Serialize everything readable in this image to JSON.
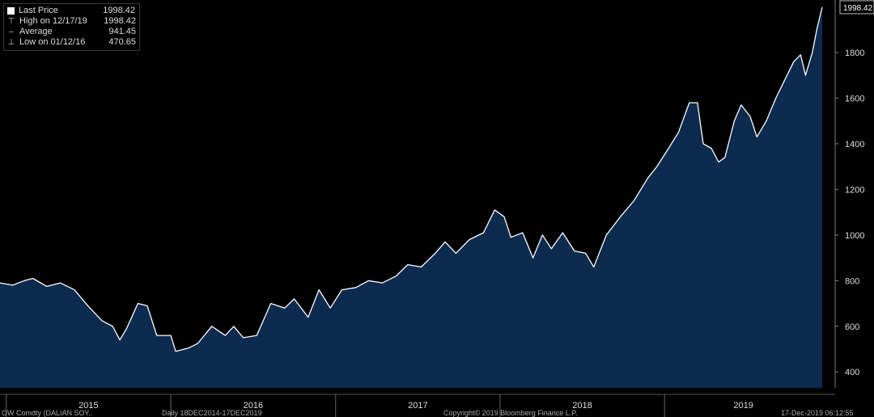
{
  "legend": {
    "items": [
      {
        "label": "Last Price",
        "value": "1998.42",
        "icon": "square-icon"
      },
      {
        "label": "High on 12/17/19",
        "value": "1998.42",
        "icon": "high-marker-icon"
      },
      {
        "label": "Average",
        "value": "941.45",
        "icon": "average-marker-icon"
      },
      {
        "label": "Low on 01/12/16",
        "value": "470.65",
        "icon": "low-marker-icon"
      }
    ]
  },
  "footer": {
    "left": "OW Comdty (DALIAN SOY..",
    "middle": "Daily 18DEC2014-17DEC2019",
    "copyright": "Copyright© 2019 Bloomberg Finance L.P.",
    "right": "17-Dec-2019 06:12:55"
  },
  "colors": {
    "fill": "#0d2a4f",
    "line": "#ffffff",
    "background": "#000000",
    "axis_text": "#dddddd"
  },
  "chart_data": {
    "type": "area",
    "x_labels": [
      "2015",
      "2016",
      "2017",
      "2018",
      "2019"
    ],
    "y_ticks": [
      400,
      600,
      800,
      1000,
      1200,
      1400,
      1600,
      1800
    ],
    "ylim": [
      330,
      2030
    ],
    "xlim": [
      "2014-12-18",
      "2019-12-17"
    ],
    "last_value_label": "1998.42",
    "grid": false,
    "series": [
      {
        "points": [
          [
            "2014-12-18",
            790
          ],
          [
            "2015-01-15",
            780
          ],
          [
            "2015-02-10",
            800
          ],
          [
            "2015-03-01",
            810
          ],
          [
            "2015-04-01",
            775
          ],
          [
            "2015-05-01",
            790
          ],
          [
            "2015-06-01",
            760
          ],
          [
            "2015-07-01",
            690
          ],
          [
            "2015-08-01",
            625
          ],
          [
            "2015-08-25",
            600
          ],
          [
            "2015-09-10",
            540
          ],
          [
            "2015-09-25",
            590
          ],
          [
            "2015-10-20",
            700
          ],
          [
            "2015-11-10",
            690
          ],
          [
            "2015-12-01",
            560
          ],
          [
            "2016-01-01",
            560
          ],
          [
            "2016-01-12",
            490
          ],
          [
            "2016-02-10",
            505
          ],
          [
            "2016-03-01",
            525
          ],
          [
            "2016-04-01",
            600
          ],
          [
            "2016-05-01",
            560
          ],
          [
            "2016-05-20",
            600
          ],
          [
            "2016-06-10",
            550
          ],
          [
            "2016-07-10",
            560
          ],
          [
            "2016-08-10",
            700
          ],
          [
            "2016-09-10",
            680
          ],
          [
            "2016-10-01",
            720
          ],
          [
            "2016-11-01",
            640
          ],
          [
            "2016-11-25",
            760
          ],
          [
            "2016-12-20",
            680
          ],
          [
            "2017-01-15",
            760
          ],
          [
            "2017-02-15",
            770
          ],
          [
            "2017-03-15",
            800
          ],
          [
            "2017-04-15",
            790
          ],
          [
            "2017-05-15",
            820
          ],
          [
            "2017-06-10",
            870
          ],
          [
            "2017-07-10",
            860
          ],
          [
            "2017-08-10",
            920
          ],
          [
            "2017-09-01",
            970
          ],
          [
            "2017-09-25",
            920
          ],
          [
            "2017-10-25",
            980
          ],
          [
            "2017-11-25",
            1010
          ],
          [
            "2017-12-20",
            1110
          ],
          [
            "2018-01-10",
            1080
          ],
          [
            "2018-01-25",
            990
          ],
          [
            "2018-02-20",
            1010
          ],
          [
            "2018-03-15",
            900
          ],
          [
            "2018-04-05",
            1000
          ],
          [
            "2018-04-25",
            940
          ],
          [
            "2018-05-20",
            1010
          ],
          [
            "2018-06-15",
            930
          ],
          [
            "2018-07-10",
            920
          ],
          [
            "2018-07-28",
            860
          ],
          [
            "2018-08-25",
            1000
          ],
          [
            "2018-09-25",
            1080
          ],
          [
            "2018-10-25",
            1150
          ],
          [
            "2018-11-25",
            1250
          ],
          [
            "2018-12-15",
            1300
          ],
          [
            "2019-01-10",
            1380
          ],
          [
            "2019-02-01",
            1450
          ],
          [
            "2019-02-25",
            1580
          ],
          [
            "2019-03-15",
            1580
          ],
          [
            "2019-03-28",
            1400
          ],
          [
            "2019-04-15",
            1380
          ],
          [
            "2019-05-01",
            1320
          ],
          [
            "2019-05-15",
            1340
          ],
          [
            "2019-06-05",
            1500
          ],
          [
            "2019-06-20",
            1570
          ],
          [
            "2019-07-10",
            1520
          ],
          [
            "2019-07-25",
            1430
          ],
          [
            "2019-08-15",
            1500
          ],
          [
            "2019-09-05",
            1600
          ],
          [
            "2019-09-25",
            1680
          ],
          [
            "2019-10-15",
            1760
          ],
          [
            "2019-10-30",
            1790
          ],
          [
            "2019-11-10",
            1700
          ],
          [
            "2019-11-25",
            1800
          ],
          [
            "2019-12-05",
            1900
          ],
          [
            "2019-12-17",
            1998.42
          ]
        ]
      }
    ]
  }
}
